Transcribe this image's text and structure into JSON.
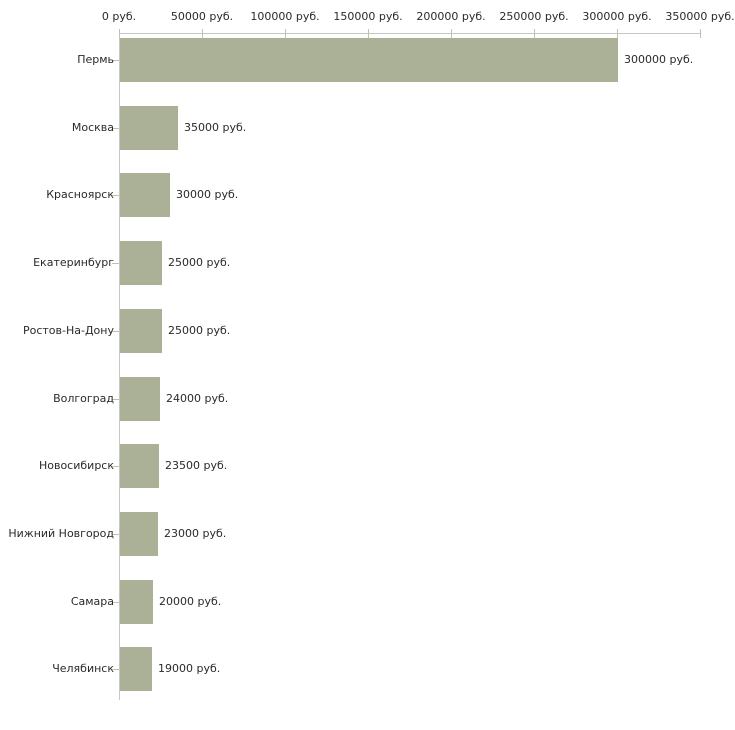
{
  "chart_data": {
    "type": "bar",
    "orientation": "horizontal",
    "title": "",
    "xlabel": "",
    "ylabel": "",
    "categories": [
      "Пермь",
      "Москва",
      "Красноярск",
      "Екатеринбург",
      "Ростов-На-Дону",
      "Волгоград",
      "Новосибирск",
      "Нижний Новгород",
      "Самара",
      "Челябинск"
    ],
    "values": [
      300000,
      35000,
      30000,
      25000,
      25000,
      24000,
      23500,
      23000,
      20000,
      19000
    ],
    "value_labels": [
      "300000 руб.",
      "35000 руб.",
      "30000 руб.",
      "25000 руб.",
      "25000 руб.",
      "24000 руб.",
      "23500 руб.",
      "23000 руб.",
      "20000 руб.",
      "19000 руб."
    ],
    "x_axis": {
      "position": "top",
      "min": 0,
      "max": 350000,
      "tick_step": 50000,
      "tick_labels": [
        "0 руб.",
        "50000 руб.",
        "100000 руб.",
        "150000 руб.",
        "200000 руб.",
        "250000 руб.",
        "300000 руб.",
        "350000 руб."
      ]
    },
    "legend": null,
    "grid": false,
    "colors": {
      "bar_fill": "#abb197",
      "axis_line": "#c6c6c6",
      "tick_mark": "#c3c3a0",
      "text": "#2a2a2a",
      "background": "#ffffff"
    }
  }
}
